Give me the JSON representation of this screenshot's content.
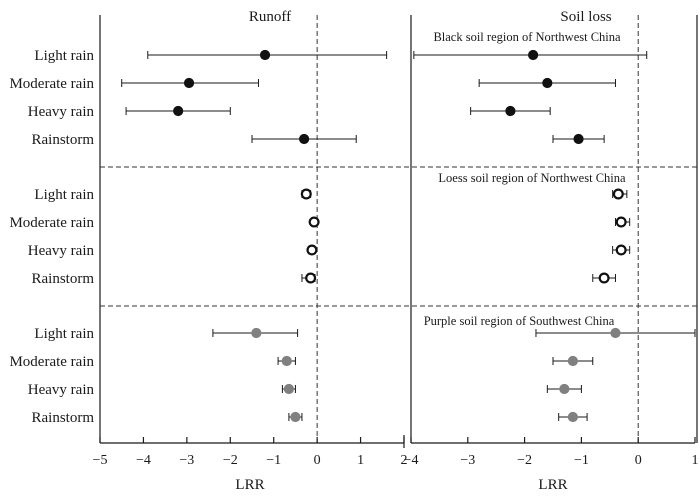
{
  "chart_data": {
    "type": "scatter",
    "style": "forest-plot",
    "xlabel": "LRR",
    "categories": [
      "Light rain",
      "Moderate rain",
      "Heavy rain",
      "Rainstorm"
    ],
    "panels": [
      {
        "title": "Runoff",
        "xlim": [
          -5,
          2
        ],
        "ticks": [
          -5,
          -4,
          -3,
          -2,
          -1,
          0,
          1,
          2
        ],
        "tick_labels": [
          "−5",
          "−4",
          "−3",
          "−2",
          "−1",
          "0",
          "1",
          "2"
        ]
      },
      {
        "title": "Soil loss",
        "xlim": [
          -4,
          1
        ],
        "ticks": [
          -4,
          -3,
          -2,
          -1,
          0,
          1
        ],
        "tick_labels": [
          "−4",
          "−3",
          "−2",
          "−1",
          "0",
          "1"
        ]
      }
    ],
    "groups": [
      {
        "name": "Black soil region of Northwest China",
        "marker": "filled-black",
        "runoff": [
          {
            "mean": -1.2,
            "low": -3.9,
            "high": 1.6
          },
          {
            "mean": -2.95,
            "low": -4.5,
            "high": -1.35
          },
          {
            "mean": -3.2,
            "low": -4.4,
            "high": -2.0
          },
          {
            "mean": -0.3,
            "low": -1.5,
            "high": 0.9
          }
        ],
        "soil_loss": [
          {
            "mean": -1.85,
            "low": -3.95,
            "high": 0.15
          },
          {
            "mean": -1.6,
            "low": -2.8,
            "high": -0.4
          },
          {
            "mean": -2.25,
            "low": -2.95,
            "high": -1.55
          },
          {
            "mean": -1.05,
            "low": -1.5,
            "high": -0.6
          }
        ]
      },
      {
        "name": "Loess soil region of Northwest China",
        "marker": "open-circle",
        "runoff": [
          {
            "mean": -0.25,
            "low": -0.35,
            "high": -0.15
          },
          {
            "mean": -0.07,
            "low": -0.12,
            "high": -0.02
          },
          {
            "mean": -0.12,
            "low": -0.2,
            "high": -0.05
          },
          {
            "mean": -0.15,
            "low": -0.35,
            "high": -0.05
          }
        ],
        "soil_loss": [
          {
            "mean": -0.35,
            "low": -0.45,
            "high": -0.2
          },
          {
            "mean": -0.3,
            "low": -0.4,
            "high": -0.15
          },
          {
            "mean": -0.3,
            "low": -0.45,
            "high": -0.15
          },
          {
            "mean": -0.6,
            "low": -0.8,
            "high": -0.4
          }
        ]
      },
      {
        "name": "Purple soil region of Southwest China",
        "marker": "filled-gray",
        "runoff": [
          {
            "mean": -1.4,
            "low": -2.4,
            "high": -0.45
          },
          {
            "mean": -0.7,
            "low": -0.9,
            "high": -0.5
          },
          {
            "mean": -0.65,
            "low": -0.8,
            "high": -0.5
          },
          {
            "mean": -0.5,
            "low": -0.65,
            "high": -0.35
          }
        ],
        "soil_loss": [
          {
            "mean": -0.4,
            "low": -1.8,
            "high": 1.0
          },
          {
            "mean": -1.15,
            "low": -1.5,
            "high": -0.8
          },
          {
            "mean": -1.3,
            "low": -1.6,
            "high": -1.0
          },
          {
            "mean": -1.15,
            "low": -1.4,
            "high": -0.9
          }
        ]
      }
    ],
    "colors": {
      "axis": "#1a1a1a",
      "filled_black": "#111111",
      "filled_gray": "#808080",
      "open_fill": "#ffffff",
      "dash": "#333333"
    }
  }
}
